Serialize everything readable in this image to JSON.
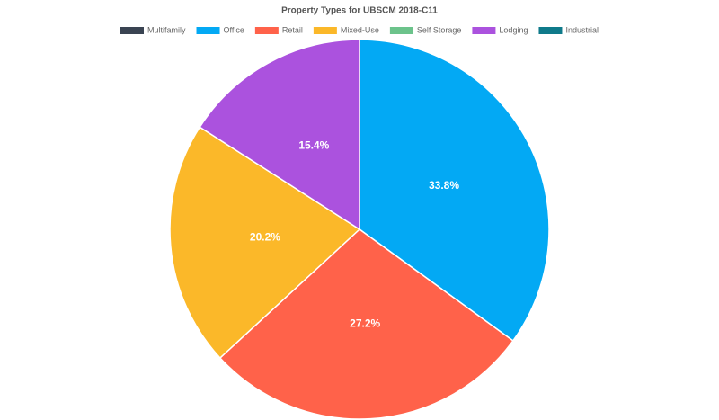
{
  "chart_data": {
    "type": "pie",
    "title": "Property Types for UBSCM 2018-C11",
    "categories": [
      "Multifamily",
      "Office",
      "Retail",
      "Mixed-Use",
      "Self Storage",
      "Lodging",
      "Industrial"
    ],
    "values": [
      0,
      33.8,
      27.2,
      20.2,
      0,
      15.4,
      0
    ],
    "value_labels": [
      null,
      "33.8%",
      "27.2%",
      "20.2%",
      null,
      "15.4%",
      null
    ],
    "colors": [
      "#3a4452",
      "#03a9f4",
      "#ff624a",
      "#fbb829",
      "#6cc38b",
      "#ab52de",
      "#0f7a8a"
    ],
    "legend": "top"
  }
}
